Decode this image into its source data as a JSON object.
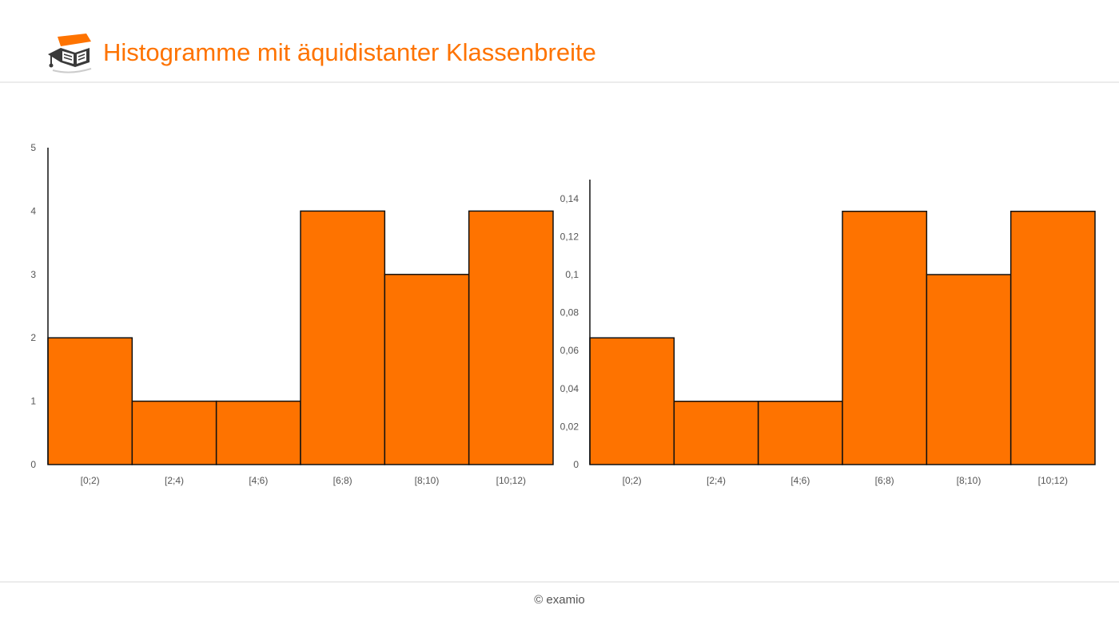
{
  "header": {
    "title": "Histogramme mit äquidistanter Klassenbreite",
    "accent_color": "#fe7300",
    "logo_icon": "graduation-book-icon"
  },
  "footer": {
    "text": "© examio"
  },
  "chart_data": [
    {
      "type": "bar",
      "title": "",
      "xlabel": "",
      "ylabel": "",
      "categories": [
        "[0;2)",
        "[2;4)",
        "[4;6)",
        "[6;8)",
        "[8;10)",
        "[10;12)"
      ],
      "values": [
        2,
        1,
        1,
        4,
        3,
        4
      ],
      "ylim": [
        0,
        5
      ],
      "yticks": [
        "0",
        "1",
        "2",
        "3",
        "4",
        "5"
      ],
      "bar_color": "#fe7300",
      "grid": false
    },
    {
      "type": "bar",
      "title": "",
      "xlabel": "",
      "ylabel": "",
      "categories": [
        "[0;2)",
        "[2;4)",
        "[4;6)",
        "[6;8)",
        "[8;10)",
        "[10;12)"
      ],
      "values": [
        0.0667,
        0.0333,
        0.0333,
        0.1333,
        0.1,
        0.1333
      ],
      "ylim": [
        0,
        0.15
      ],
      "yticks": [
        "0",
        "0,02",
        "0,04",
        "0,06",
        "0,08",
        "0,1",
        "0,12",
        "0,14"
      ],
      "bar_color": "#fe7300",
      "grid": false
    }
  ]
}
